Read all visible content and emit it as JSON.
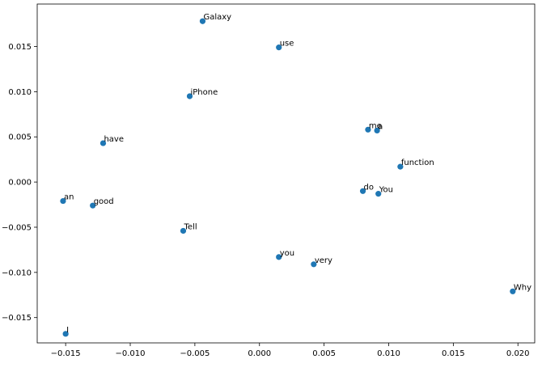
{
  "chart_data": {
    "type": "scatter",
    "title": "",
    "xlabel": "",
    "ylabel": "",
    "xlim": [
      -0.0172,
      0.0213
    ],
    "ylim": [
      -0.0178,
      0.0197
    ],
    "grid": false,
    "legend": "none",
    "marker_color": "#1f77b4",
    "x_ticks": [
      {
        "value": -0.015,
        "label": "−0.015"
      },
      {
        "value": -0.01,
        "label": "−0.010"
      },
      {
        "value": -0.005,
        "label": "−0.005"
      },
      {
        "value": 0.0,
        "label": "0.000"
      },
      {
        "value": 0.005,
        "label": "0.005"
      },
      {
        "value": 0.01,
        "label": "0.010"
      },
      {
        "value": 0.015,
        "label": "0.015"
      },
      {
        "value": 0.02,
        "label": "0.020"
      }
    ],
    "y_ticks": [
      {
        "value": 0.015,
        "label": "0.015"
      },
      {
        "value": 0.01,
        "label": "0.010"
      },
      {
        "value": 0.005,
        "label": "0.005"
      },
      {
        "value": 0.0,
        "label": "0.000"
      },
      {
        "value": -0.005,
        "label": "−0.005"
      },
      {
        "value": -0.01,
        "label": "−0.010"
      },
      {
        "value": -0.015,
        "label": "−0.015"
      }
    ],
    "points": [
      {
        "label": "Galaxy",
        "x": -0.0044,
        "y": 0.0178
      },
      {
        "label": "use",
        "x": 0.0015,
        "y": 0.0149
      },
      {
        "label": "iPhone",
        "x": -0.0054,
        "y": 0.0095
      },
      {
        "label": "me",
        "x": 0.0084,
        "y": 0.0058
      },
      {
        "label": "a",
        "x": 0.0091,
        "y": 0.0057
      },
      {
        "label": "have",
        "x": -0.0121,
        "y": 0.0043
      },
      {
        "label": "function",
        "x": 0.0109,
        "y": 0.0017
      },
      {
        "label": "do",
        "x": 0.008,
        "y": -0.001
      },
      {
        "label": "You",
        "x": 0.0092,
        "y": -0.0013
      },
      {
        "label": "an",
        "x": -0.0152,
        "y": -0.0021
      },
      {
        "label": "good",
        "x": -0.0129,
        "y": -0.0026
      },
      {
        "label": "Tell",
        "x": -0.0059,
        "y": -0.0054
      },
      {
        "label": "you",
        "x": 0.0015,
        "y": -0.0083
      },
      {
        "label": "very",
        "x": 0.0042,
        "y": -0.0091
      },
      {
        "label": "Why",
        "x": 0.0196,
        "y": -0.0121
      },
      {
        "label": "I",
        "x": -0.015,
        "y": -0.0168
      }
    ]
  }
}
